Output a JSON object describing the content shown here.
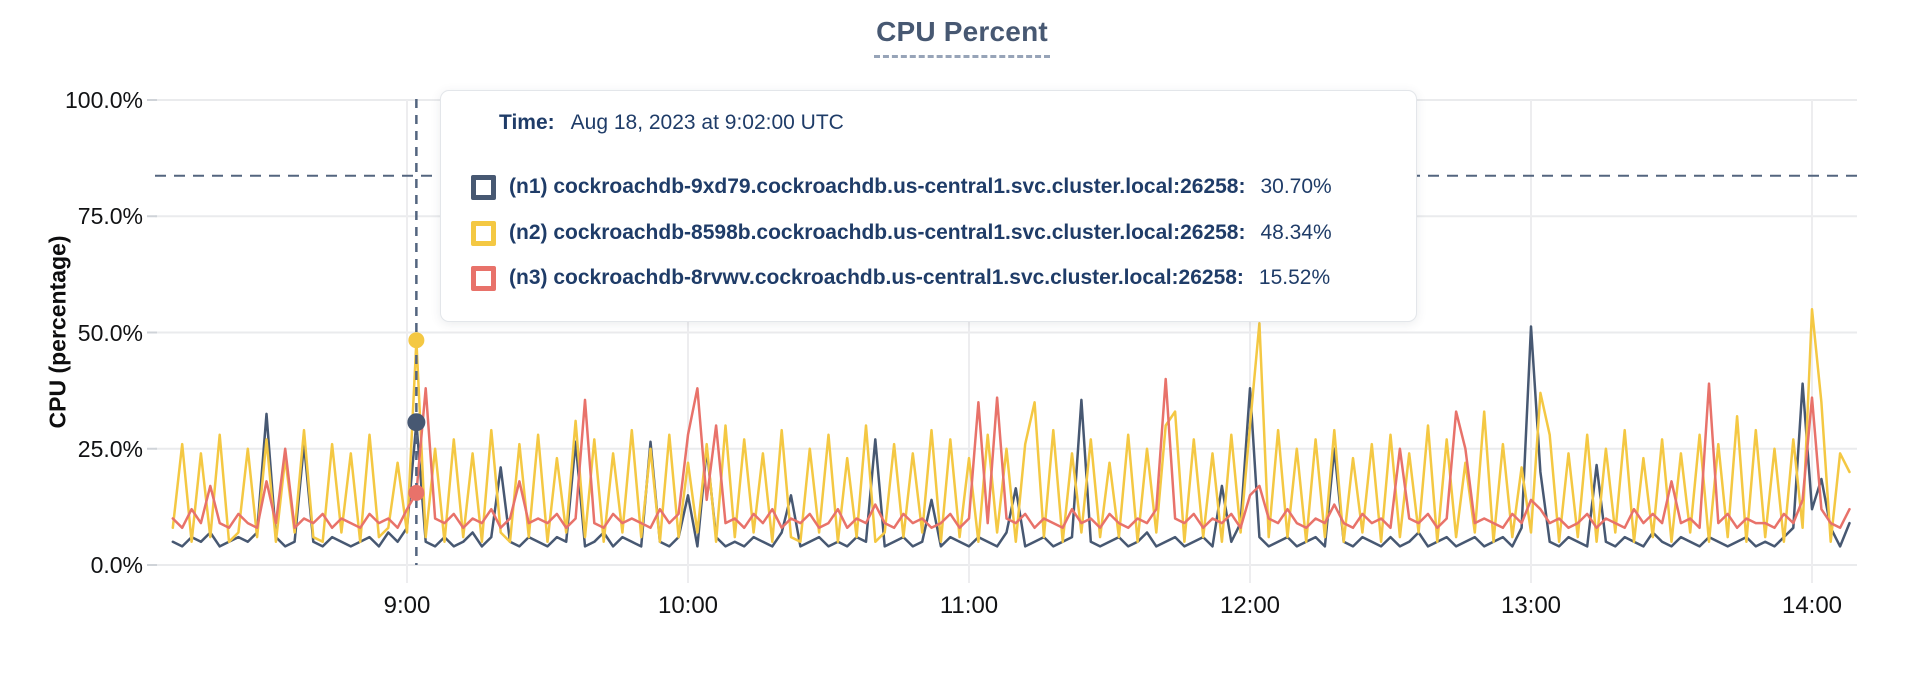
{
  "chart": {
    "title": "CPU Percent",
    "y_axis_label": "CPU (percentage)"
  },
  "tooltip": {
    "time_label": "Time:",
    "time_value": "Aug 18, 2023 at 9:02:00 UTC",
    "rows": [
      {
        "name": "(n1) cockroachdb-9xd79.cockroachdb.us-central1.svc.cluster.local:26258:",
        "value": "30.70%",
        "color": "#475872"
      },
      {
        "name": "(n2) cockroachdb-8598b.cockroachdb.us-central1.svc.cluster.local:26258:",
        "value": "48.34%",
        "color": "#f4c843"
      },
      {
        "name": "(n3) cockroachdb-8rvwv.cockroachdb.us-central1.svc.cluster.local:26258:",
        "value": "15.52%",
        "color": "#e8726a"
      }
    ]
  },
  "colors": {
    "n1": "#475872",
    "n2": "#f4c843",
    "n3": "#e8726a",
    "grid": "#eaebed",
    "grid_vertical": "#ededef",
    "tick_mark": "#cfd3d8",
    "crosshair": "#53657f",
    "title": "#475872",
    "tooltip_text": "#1f3c68"
  },
  "chart_data": {
    "type": "line",
    "title": "CPU Percent",
    "xlabel": "",
    "ylabel": "CPU (percentage)",
    "ylim": [
      0,
      100
    ],
    "grid": true,
    "legend_position": "tooltip-overlay",
    "y_tick_values": [
      0,
      25,
      50,
      75,
      100
    ],
    "y_tick_labels": [
      "0.0%",
      "25.0%",
      "50.0%",
      "75.0%",
      "100.0%"
    ],
    "x_tick_labels": [
      "9:00",
      "10:00",
      "11:00",
      "12:00",
      "13:00",
      "14:00"
    ],
    "x_tick_minutes": [
      540,
      600,
      660,
      720,
      780,
      840
    ],
    "x_range_minutes": [
      490,
      848
    ],
    "sample_step_minutes": 2,
    "hover": {
      "minute": 542,
      "time": "Aug 18, 2023 at 9:02:00 UTC",
      "cursor_pct": 83.7,
      "values": [
        30.7,
        48.34,
        15.52
      ]
    },
    "series": [
      {
        "name": "(n1) cockroachdb-9xd79.cockroachdb.us-central1.svc.cluster.local:26258",
        "color": "#475872",
        "values": [
          5,
          4,
          6,
          5,
          7,
          4,
          5,
          6,
          5,
          7,
          32.5,
          6,
          4,
          5,
          26,
          5,
          4,
          6,
          5,
          4,
          5,
          6,
          4,
          7,
          5,
          8,
          30.7,
          5,
          4,
          6,
          4,
          5,
          7,
          4,
          6,
          21,
          5,
          4,
          6,
          5,
          4,
          6,
          5,
          26.5,
          4,
          5,
          7,
          4,
          6,
          5,
          4,
          26.5,
          5,
          4,
          6,
          15,
          4,
          25,
          6,
          4,
          5,
          4,
          6,
          5,
          4,
          7,
          15,
          4,
          5,
          6,
          4,
          5,
          4,
          6,
          5,
          27,
          4,
          5,
          6,
          4,
          5,
          14,
          4,
          6,
          5,
          4,
          6,
          5,
          4,
          7,
          16.5,
          4,
          5,
          6,
          4,
          5,
          6,
          35.5,
          5,
          4,
          5,
          6,
          4,
          5,
          7,
          4,
          5,
          6,
          4,
          5,
          6,
          4,
          17,
          5,
          9,
          38,
          6,
          4,
          5,
          6,
          4,
          5,
          6,
          4,
          25,
          5,
          4,
          6,
          5,
          4,
          6,
          4,
          5,
          7,
          4,
          5,
          6,
          4,
          5,
          6,
          4,
          5,
          6,
          4,
          8,
          51.3,
          20,
          5,
          4,
          6,
          5,
          4,
          21.5,
          5,
          4,
          6,
          5,
          4,
          7,
          5,
          4,
          6,
          5,
          4,
          6,
          5,
          4,
          5,
          6,
          4,
          5,
          4,
          6,
          8,
          39,
          12,
          18.5,
          8,
          4,
          9
        ]
      },
      {
        "name": "(n2) cockroachdb-8598b.cockroachdb.us-central1.svc.cluster.local:26258",
        "color": "#f4c843",
        "values": [
          8,
          26,
          5,
          24,
          6,
          28,
          5,
          7,
          25,
          6,
          27,
          5,
          23,
          7,
          29,
          6,
          5,
          26,
          7,
          24,
          5,
          28,
          6,
          8,
          22,
          7,
          48.3,
          6,
          25,
          5,
          27,
          6,
          24,
          5,
          29,
          7,
          5,
          26,
          6,
          28,
          5,
          23,
          7,
          31,
          6,
          27,
          5,
          24,
          7,
          29,
          6,
          25,
          5,
          28,
          6,
          22,
          7,
          26,
          5,
          30,
          6,
          27,
          7,
          24,
          5,
          29,
          6,
          5,
          25,
          7,
          28,
          5,
          23,
          6,
          30,
          5,
          7,
          26,
          6,
          24,
          7,
          29,
          5,
          27,
          6,
          23,
          5,
          28,
          7,
          25,
          5,
          26,
          35,
          6,
          29,
          5,
          24,
          7,
          27,
          6,
          22,
          6,
          28,
          5,
          25,
          7,
          30,
          33,
          5,
          27,
          6,
          24,
          5,
          28,
          7,
          30,
          52,
          6,
          29,
          6,
          25,
          5,
          27,
          6,
          29,
          5,
          23,
          7,
          26,
          5,
          28,
          6,
          24,
          7,
          30,
          5,
          27,
          6,
          22,
          7,
          33,
          5,
          26,
          6,
          21,
          7,
          37,
          28,
          5,
          24,
          6,
          28,
          5,
          25,
          7,
          29,
          5,
          23,
          6,
          27,
          5,
          24,
          7,
          28,
          5,
          26,
          6,
          32,
          5,
          29,
          6,
          25,
          5,
          27,
          8,
          55,
          35,
          5,
          24,
          20
        ]
      },
      {
        "name": "(n3) cockroachdb-8rvwv.cockroachdb.us-central1.svc.cluster.local:26258",
        "color": "#e8726a",
        "values": [
          10,
          8,
          12,
          9,
          17,
          9,
          8,
          11,
          9,
          8,
          18,
          9,
          25,
          8,
          10,
          9,
          11,
          8,
          10,
          9,
          8,
          11,
          9,
          10,
          8,
          12,
          15.5,
          38,
          10,
          9,
          11,
          8,
          10,
          9,
          12,
          8,
          10,
          18,
          9,
          10,
          9,
          11,
          8,
          10,
          35.5,
          9,
          8,
          11,
          9,
          10,
          9,
          8,
          12,
          9,
          11,
          28,
          38,
          14,
          30,
          9,
          10,
          8,
          11,
          9,
          12,
          8,
          10,
          9,
          11,
          8,
          9,
          12,
          8,
          10,
          9,
          13,
          9,
          8,
          11,
          9,
          10,
          8,
          9,
          11,
          8,
          10,
          35,
          9,
          36,
          10,
          9,
          11,
          8,
          10,
          9,
          8,
          12,
          9,
          10,
          8,
          11,
          9,
          8,
          10,
          9,
          12,
          40,
          10,
          9,
          11,
          8,
          10,
          9,
          11,
          8,
          15,
          17,
          10,
          9,
          12,
          9,
          8,
          10,
          9,
          13,
          9,
          8,
          11,
          9,
          10,
          8,
          25,
          10,
          9,
          11,
          8,
          10,
          33,
          25,
          9,
          10,
          9,
          8,
          11,
          9,
          14,
          12,
          9,
          10,
          8,
          9,
          11,
          8,
          10,
          9,
          8,
          12,
          9,
          11,
          9,
          18,
          9,
          10,
          8,
          39,
          9,
          11,
          8,
          10,
          9,
          9,
          8,
          11,
          9,
          14,
          36,
          12,
          9,
          8,
          12
        ]
      }
    ]
  }
}
